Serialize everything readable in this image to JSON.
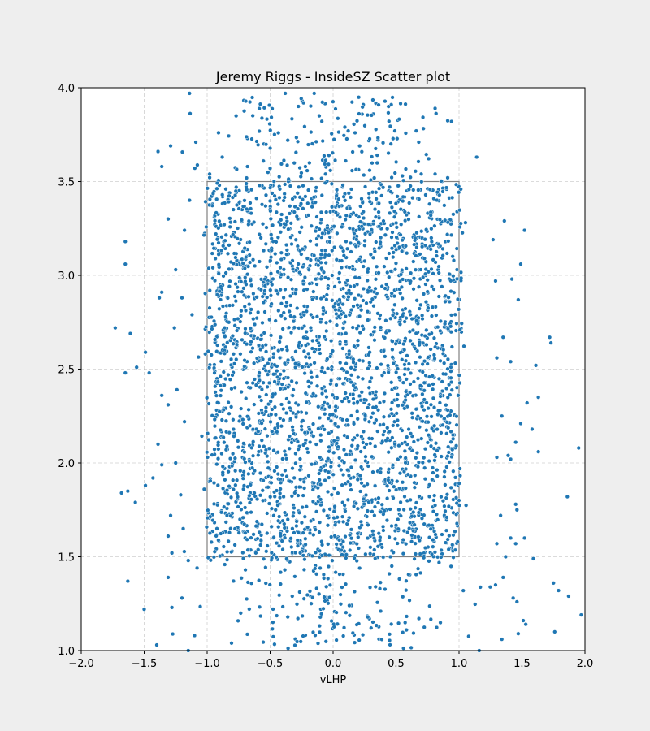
{
  "chart_data": {
    "type": "scatter",
    "title": "Jeremy Riggs - InsideSZ Scatter plot",
    "xlabel": "vLHP",
    "ylabel": "",
    "xlim": [
      -2.0,
      2.0
    ],
    "ylim": [
      1.0,
      4.0
    ],
    "xticks": [
      "−2.0",
      "−1.5",
      "−1.0",
      "−0.5",
      "0.0",
      "0.5",
      "1.0",
      "1.5",
      "2.0"
    ],
    "xtick_values": [
      -2.0,
      -1.5,
      -1.0,
      -0.5,
      0.0,
      0.5,
      1.0,
      1.5,
      2.0
    ],
    "yticks": [
      "1.0",
      "1.5",
      "2.0",
      "2.5",
      "3.0",
      "3.5",
      "4.0"
    ],
    "ytick_values": [
      1.0,
      1.5,
      2.0,
      2.5,
      3.0,
      3.5,
      4.0
    ],
    "grid": true,
    "strike_zone": {
      "x": [
        -1.0,
        1.0
      ],
      "y": [
        1.5,
        3.5
      ]
    },
    "series": [
      {
        "marker_color": "#1f77b4",
        "points": [
          [
            -1.14,
            3.97
          ],
          [
            -0.38,
            3.97
          ],
          [
            -0.15,
            3.97
          ],
          [
            0.24,
            3.91
          ],
          [
            0.44,
            3.9
          ],
          [
            0.81,
            3.89
          ],
          [
            0.32,
            3.86
          ],
          [
            -0.11,
            3.85
          ],
          [
            0.94,
            3.82
          ],
          [
            -0.77,
            3.85
          ],
          [
            -0.91,
            3.76
          ],
          [
            0.12,
            3.77
          ],
          [
            0.66,
            3.77
          ],
          [
            0.49,
            3.77
          ],
          [
            -0.68,
            3.73
          ],
          [
            -0.36,
            3.72
          ],
          [
            -1.39,
            3.66
          ],
          [
            -1.29,
            3.69
          ],
          [
            -1.09,
            3.71
          ],
          [
            0.68,
            3.71
          ],
          [
            -0.55,
            3.7
          ],
          [
            -0.88,
            3.63
          ],
          [
            -1.36,
            3.58
          ],
          [
            1.14,
            3.63
          ],
          [
            0.1,
            3.61
          ],
          [
            0.35,
            3.64
          ],
          [
            -0.22,
            3.58
          ],
          [
            -0.5,
            3.57
          ],
          [
            -0.68,
            3.58
          ],
          [
            0.7,
            3.54
          ],
          [
            0.81,
            3.54
          ],
          [
            0.55,
            3.53
          ],
          [
            -0.98,
            3.54
          ],
          [
            -0.06,
            3.54
          ],
          [
            0.29,
            3.56
          ],
          [
            0.91,
            3.52
          ],
          [
            -1.65,
            3.18
          ],
          [
            -1.65,
            3.06
          ],
          [
            -1.73,
            2.72
          ],
          [
            -1.61,
            2.69
          ],
          [
            -1.49,
            2.59
          ],
          [
            -1.46,
            2.48
          ],
          [
            -1.65,
            2.48
          ],
          [
            -1.56,
            2.51
          ],
          [
            -1.38,
            2.88
          ],
          [
            -1.36,
            2.91
          ],
          [
            -1.31,
            3.3
          ],
          [
            -1.25,
            3.03
          ],
          [
            -1.18,
            3.24
          ],
          [
            -1.14,
            3.4
          ],
          [
            -1.2,
            2.88
          ],
          [
            -1.26,
            2.72
          ],
          [
            -1.12,
            2.79
          ],
          [
            -1.36,
            2.36
          ],
          [
            -1.31,
            2.31
          ],
          [
            -1.24,
            2.39
          ],
          [
            -1.39,
            2.1
          ],
          [
            -1.25,
            2.0
          ],
          [
            -1.18,
            2.22
          ],
          [
            -1.36,
            1.99
          ],
          [
            -1.43,
            1.92
          ],
          [
            -1.21,
            1.83
          ],
          [
            -1.29,
            1.72
          ],
          [
            -1.19,
            1.65
          ],
          [
            -1.31,
            1.61
          ],
          [
            -1.68,
            1.84
          ],
          [
            -1.49,
            1.88
          ],
          [
            -1.63,
            1.85
          ],
          [
            -1.57,
            1.79
          ],
          [
            -1.28,
            1.52
          ],
          [
            -1.15,
            1.48
          ],
          [
            -1.2,
            1.28
          ],
          [
            -1.28,
            1.23
          ],
          [
            -1.5,
            1.22
          ],
          [
            -1.31,
            1.39
          ],
          [
            -1.63,
            1.37
          ],
          [
            -1.08,
            1.44
          ],
          [
            -1.1,
            1.08
          ],
          [
            -1.15,
            1.0
          ],
          [
            -1.4,
            1.03
          ],
          [
            1.52,
            3.24
          ],
          [
            1.49,
            3.06
          ],
          [
            1.36,
            3.29
          ],
          [
            1.27,
            3.19
          ],
          [
            1.42,
            2.98
          ],
          [
            1.47,
            2.87
          ],
          [
            1.29,
            2.97
          ],
          [
            1.72,
            2.67
          ],
          [
            1.73,
            2.64
          ],
          [
            1.61,
            2.52
          ],
          [
            1.41,
            2.54
          ],
          [
            1.35,
            2.67
          ],
          [
            1.3,
            2.56
          ],
          [
            1.63,
            2.35
          ],
          [
            1.54,
            2.32
          ],
          [
            1.58,
            2.18
          ],
          [
            1.63,
            2.06
          ],
          [
            1.49,
            2.21
          ],
          [
            1.45,
            2.11
          ],
          [
            1.34,
            2.25
          ],
          [
            1.39,
            2.04
          ],
          [
            1.41,
            2.02
          ],
          [
            1.3,
            2.03
          ],
          [
            1.45,
            1.78
          ],
          [
            1.46,
            1.75
          ],
          [
            1.33,
            1.72
          ],
          [
            1.52,
            1.6
          ],
          [
            1.41,
            1.6
          ],
          [
            1.45,
            1.57
          ],
          [
            1.59,
            1.49
          ],
          [
            1.37,
            1.5
          ],
          [
            1.3,
            1.57
          ],
          [
            1.86,
            1.82
          ],
          [
            1.95,
            2.08
          ],
          [
            1.75,
            1.36
          ],
          [
            1.79,
            1.32
          ],
          [
            1.87,
            1.29
          ],
          [
            1.97,
            1.19
          ],
          [
            1.76,
            1.1
          ],
          [
            1.43,
            1.28
          ],
          [
            1.46,
            1.26
          ],
          [
            1.51,
            1.16
          ],
          [
            1.53,
            1.14
          ],
          [
            1.35,
            1.39
          ],
          [
            1.29,
            1.35
          ],
          [
            1.47,
            1.09
          ],
          [
            1.34,
            1.06
          ],
          [
            1.16,
            1.0
          ]
        ]
      }
    ]
  }
}
